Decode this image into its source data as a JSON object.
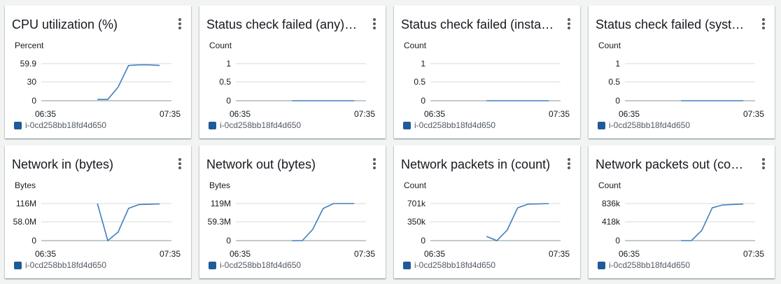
{
  "colors": {
    "series": "#3f7fbf",
    "swatch": "#1f5b98",
    "grid": "#d5dbdb",
    "axis": "#16191f"
  },
  "widgets": [
    {
      "title": "CPU utilization (%)",
      "unit": "Percent",
      "yticks": [
        "59.9",
        "30",
        "0"
      ],
      "xstart": "06:35",
      "xend": "07:35",
      "legend": "i-0cd258bb18fd4d650",
      "menu_icon": "vertical-ellipsis-icon",
      "chart_data": {
        "type": "line",
        "x": [
          "07:00",
          "07:05",
          "07:10",
          "07:15",
          "07:20",
          "07:25",
          "07:30"
        ],
        "series": [
          {
            "name": "i-0cd258bb18fd4d650",
            "values": [
              2,
              2,
              22,
              57,
              58,
              58,
              57
            ]
          }
        ],
        "ylim": [
          0,
          59.9
        ]
      }
    },
    {
      "title": "Status check failed (any) (count)",
      "unit": "Count",
      "yticks": [
        "1",
        "0.5",
        "0"
      ],
      "xstart": "06:35",
      "xend": "07:35",
      "legend": "i-0cd258bb18fd4d650",
      "menu_icon": "vertical-ellipsis-icon",
      "chart_data": {
        "type": "line",
        "x": [
          "07:00",
          "07:05",
          "07:10",
          "07:15",
          "07:20",
          "07:25",
          "07:30"
        ],
        "series": [
          {
            "name": "i-0cd258bb18fd4d650",
            "values": [
              0,
              0,
              0,
              0,
              0,
              0,
              0
            ]
          }
        ],
        "ylim": [
          0,
          1
        ]
      }
    },
    {
      "title": "Status check failed (instance) (count)",
      "unit": "Count",
      "yticks": [
        "1",
        "0.5",
        "0"
      ],
      "xstart": "06:35",
      "xend": "07:35",
      "legend": "i-0cd258bb18fd4d650",
      "menu_icon": "vertical-ellipsis-icon",
      "chart_data": {
        "type": "line",
        "x": [
          "07:00",
          "07:05",
          "07:10",
          "07:15",
          "07:20",
          "07:25",
          "07:30"
        ],
        "series": [
          {
            "name": "i-0cd258bb18fd4d650",
            "values": [
              0,
              0,
              0,
              0,
              0,
              0,
              0
            ]
          }
        ],
        "ylim": [
          0,
          1
        ]
      }
    },
    {
      "title": "Status check failed (system) (count)",
      "unit": "Count",
      "yticks": [
        "1",
        "0.5",
        "0"
      ],
      "xstart": "06:35",
      "xend": "07:35",
      "legend": "i-0cd258bb18fd4d650",
      "menu_icon": "vertical-ellipsis-icon",
      "chart_data": {
        "type": "line",
        "x": [
          "07:00",
          "07:05",
          "07:10",
          "07:15",
          "07:20",
          "07:25",
          "07:30"
        ],
        "series": [
          {
            "name": "i-0cd258bb18fd4d650",
            "values": [
              0,
              0,
              0,
              0,
              0,
              0,
              0
            ]
          }
        ],
        "ylim": [
          0,
          1
        ]
      }
    },
    {
      "title": "Network in (bytes)",
      "unit": "Bytes",
      "yticks": [
        "116M",
        "58.0M",
        "0"
      ],
      "xstart": "06:35",
      "xend": "07:35",
      "legend": "i-0cd258bb18fd4d650",
      "menu_icon": "vertical-ellipsis-icon",
      "chart_data": {
        "type": "line",
        "x": [
          "07:00",
          "07:05",
          "07:10",
          "07:15",
          "07:20",
          "07:25",
          "07:30"
        ],
        "series": [
          {
            "name": "i-0cd258bb18fd4d650",
            "values": [
              116000000,
              0,
              27000000,
              101000000,
              113000000,
              114000000,
              115000000
            ]
          }
        ],
        "ylim": [
          0,
          116000000
        ]
      }
    },
    {
      "title": "Network out (bytes)",
      "unit": "Bytes",
      "yticks": [
        "119M",
        "59.3M",
        "0"
      ],
      "xstart": "06:35",
      "xend": "07:35",
      "legend": "i-0cd258bb18fd4d650",
      "menu_icon": "vertical-ellipsis-icon",
      "chart_data": {
        "type": "line",
        "x": [
          "07:00",
          "07:05",
          "07:10",
          "07:15",
          "07:20",
          "07:25",
          "07:30"
        ],
        "series": [
          {
            "name": "i-0cd258bb18fd4d650",
            "values": [
              0,
              0,
              36000000,
              103000000,
              119000000,
              119000000,
              119000000
            ]
          }
        ],
        "ylim": [
          0,
          119000000
        ]
      }
    },
    {
      "title": "Network packets in (count)",
      "unit": "Count",
      "yticks": [
        "701k",
        "350k",
        "0"
      ],
      "xstart": "06:35",
      "xend": "07:35",
      "legend": "i-0cd258bb18fd4d650",
      "menu_icon": "vertical-ellipsis-icon",
      "chart_data": {
        "type": "line",
        "x": [
          "07:00",
          "07:05",
          "07:10",
          "07:15",
          "07:20",
          "07:25",
          "07:30"
        ],
        "series": [
          {
            "name": "i-0cd258bb18fd4d650",
            "values": [
              80000,
              0,
              200000,
              620000,
              690000,
              695000,
              701000
            ]
          }
        ],
        "ylim": [
          0,
          701000
        ]
      }
    },
    {
      "title": "Network packets out (count)",
      "unit": "Count",
      "yticks": [
        "836k",
        "418k",
        "0"
      ],
      "xstart": "06:35",
      "xend": "07:35",
      "legend": "i-0cd258bb18fd4d650",
      "menu_icon": "vertical-ellipsis-icon",
      "chart_data": {
        "type": "line",
        "x": [
          "07:00",
          "07:05",
          "07:10",
          "07:15",
          "07:20",
          "07:25",
          "07:30"
        ],
        "series": [
          {
            "name": "i-0cd258bb18fd4d650",
            "values": [
              0,
              0,
              230000,
              740000,
              805000,
              815000,
              825000
            ]
          }
        ],
        "ylim": [
          0,
          836000
        ]
      }
    }
  ]
}
